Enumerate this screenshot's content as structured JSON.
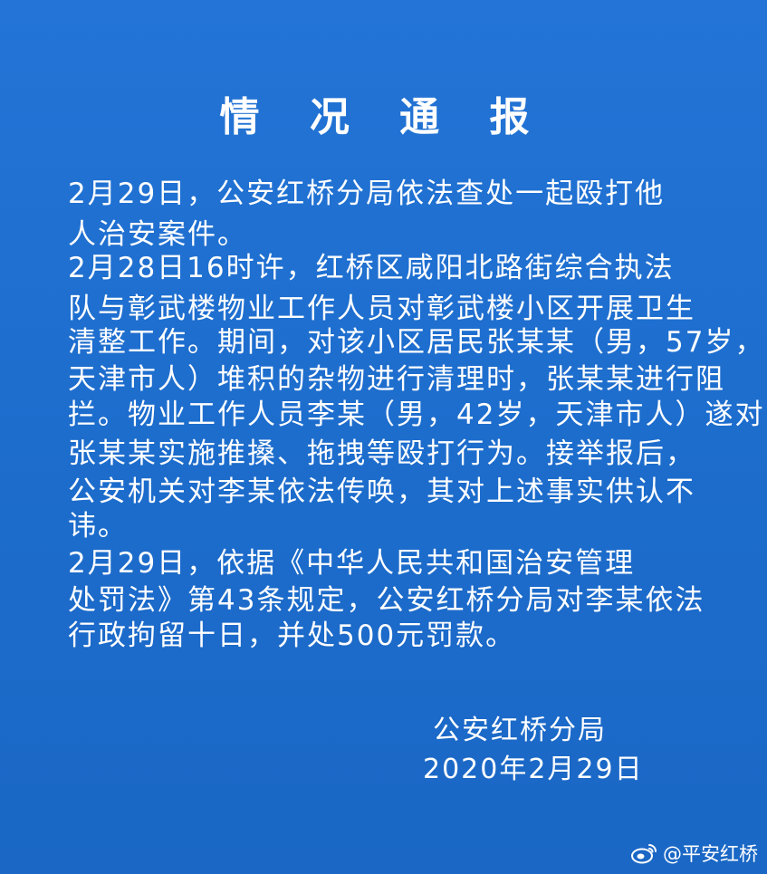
{
  "notice": {
    "title": "情 况 通 报",
    "lines": [
      "    2月29日，公安红桥分局依法查处一起殴打他",
      "人治安案件。",
      "    2月28日16时许，红桥区咸阳北路街综合执法",
      "队与彰武楼物业工作人员对彰武楼小区开展卫生",
      "清整工作。期间，对该小区居民张某某（男，57岁，",
      "天津市人）堆积的杂物进行清理时，张某某进行阻",
      "拦。物业工作人员李某（男，42岁，天津市人）遂对",
      "张某某实施推搡、拖拽等殴打行为。接举报后，",
      "公安机关对李某依法传唤，其对上述事实供认不",
      "讳。",
      "    2月29日，依据《中华人民共和国治安管理",
      "处罚法》第43条规定，公安红桥分局对李某依法",
      "行政拘留十日，并处500元罚款。"
    ],
    "signature_org": "公安红桥分局",
    "signature_date": "2020年2月29日"
  },
  "watermark": {
    "icon": "weibo-icon",
    "text": "@平安红桥"
  }
}
